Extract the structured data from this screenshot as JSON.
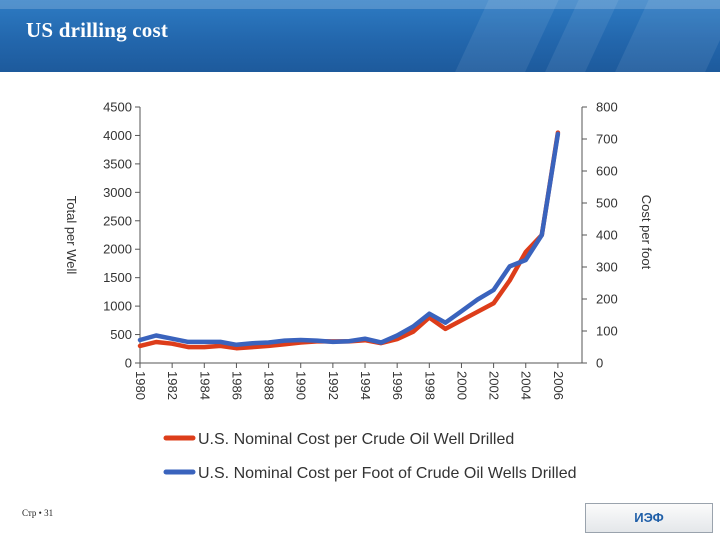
{
  "slide": {
    "title": "US drilling cost",
    "footer_label": "Стр • 31",
    "badge": "ИЭФ",
    "colors": {
      "header": "#2367ad",
      "series_cost_per_well": "#dd3d1a",
      "series_cost_per_foot": "#3a63bd"
    }
  },
  "chart_data": {
    "type": "line",
    "title": "",
    "y_left_label": "Total per Well",
    "y_right_label": "Cost per foot",
    "y_left_ticks": [
      "0",
      "500",
      "1000",
      "1500",
      "2000",
      "2500",
      "3000",
      "3500",
      "4000",
      "4500"
    ],
    "y_right_ticks": [
      "0",
      "100",
      "200",
      "300",
      "400",
      "500",
      "600",
      "700",
      "800"
    ],
    "ylim_left": [
      0,
      4500
    ],
    "ylim_right": [
      0,
      800
    ],
    "x_range": [
      1980,
      2007.5
    ],
    "x_ticks": [
      {
        "year": 1980,
        "label": "1980"
      },
      {
        "year": 1982,
        "label": "1982"
      },
      {
        "year": 1984,
        "label": "1984"
      },
      {
        "year": 1986,
        "label": "1986"
      },
      {
        "year": 1988,
        "label": "1988"
      },
      {
        "year": 1990,
        "label": "1990"
      },
      {
        "year": 1992,
        "label": "1992"
      },
      {
        "year": 1994,
        "label": "1994"
      },
      {
        "year": 1996,
        "label": "1996"
      },
      {
        "year": 1998,
        "label": "1998"
      },
      {
        "year": 2000,
        "label": "2000"
      },
      {
        "year": 2002,
        "label": "2002"
      },
      {
        "year": 2004,
        "label": "2004"
      },
      {
        "year": 2006,
        "label": "2006"
      }
    ],
    "legend_placement": "bottom",
    "grid": false,
    "series": [
      {
        "name": "U.S. Nominal Cost per Crude Oil Well Drilled",
        "axis": "left",
        "color": "#dd3d1a",
        "x": [
          1980,
          1981,
          1982,
          1983,
          1984,
          1985,
          1986,
          1987,
          1988,
          1989,
          1990,
          1991,
          1992,
          1993,
          1994,
          1995,
          1996,
          1997,
          1998,
          1999,
          2000,
          2001,
          2002,
          2003,
          2004,
          2005,
          2006
        ],
        "y": [
          300,
          370,
          340,
          280,
          280,
          300,
          260,
          280,
          300,
          330,
          360,
          380,
          380,
          380,
          400,
          350,
          420,
          550,
          800,
          600,
          750,
          900,
          1050,
          1450,
          1950,
          2250,
          4050
        ]
      },
      {
        "name": "U.S. Nominal Cost per Foot of Crude Oil Wells Drilled",
        "axis": "right",
        "color": "#3a63bd",
        "x": [
          1980,
          1981,
          1982,
          1983,
          1984,
          1985,
          1986,
          1987,
          1988,
          1989,
          1990,
          1991,
          1992,
          1993,
          1994,
          1995,
          1996,
          1997,
          1998,
          1999,
          2000,
          2001,
          2002,
          2003,
          2004,
          2005,
          2006
        ],
        "y": [
          72,
          86,
          76,
          66,
          66,
          66,
          57,
          62,
          64,
          70,
          72,
          70,
          66,
          68,
          76,
          64,
          86,
          114,
          154,
          126,
          162,
          198,
          228,
          302,
          322,
          400,
          716
        ]
      }
    ]
  }
}
